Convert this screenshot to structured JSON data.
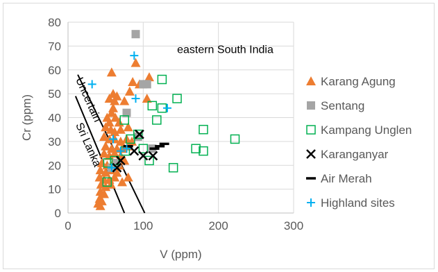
{
  "chart_data": {
    "type": "scatter",
    "xlabel": "V (ppm)",
    "ylabel": "Cr (ppm)",
    "xlim": [
      0,
      300
    ],
    "ylim": [
      0,
      80
    ],
    "x_ticks": [
      "0",
      "100",
      "200",
      "300"
    ],
    "y_ticks": [
      "0",
      "10",
      "20",
      "30",
      "40",
      "50",
      "60",
      "70",
      "80"
    ],
    "grid": true,
    "legend_position": "right",
    "annotations": [
      {
        "text": "eastern South India",
        "x": 145,
        "y": 67
      },
      {
        "text": "Uncertain",
        "x": 10,
        "y": 56,
        "rotation_deg": 66
      },
      {
        "text": "Sri Lanka",
        "x": 10,
        "y": 37,
        "rotation_deg": 66
      }
    ],
    "boundary_lines": [
      {
        "x": [
          13,
          102
        ],
        "y": [
          58,
          0
        ]
      },
      {
        "x": [
          10,
          75
        ],
        "y": [
          49,
          0
        ]
      }
    ],
    "series": [
      {
        "name": "Karang Agung",
        "marker": "triangle",
        "color": "#ED7D31",
        "points": [
          [
            58,
            59
          ],
          [
            90,
            63
          ],
          [
            108,
            57
          ],
          [
            86,
            55
          ],
          [
            95,
            54
          ],
          [
            82,
            51
          ],
          [
            60,
            50
          ],
          [
            65,
            49
          ],
          [
            55,
            48
          ],
          [
            62,
            47
          ],
          [
            75,
            47
          ],
          [
            105,
            48
          ],
          [
            60,
            44
          ],
          [
            58,
            42
          ],
          [
            52,
            40
          ],
          [
            63,
            40
          ],
          [
            55,
            38
          ],
          [
            68,
            38
          ],
          [
            50,
            36
          ],
          [
            57,
            35
          ],
          [
            62,
            34
          ],
          [
            70,
            35
          ],
          [
            80,
            36
          ],
          [
            48,
            32
          ],
          [
            55,
            31
          ],
          [
            62,
            31
          ],
          [
            70,
            30
          ],
          [
            78,
            31
          ],
          [
            85,
            30
          ],
          [
            50,
            28
          ],
          [
            58,
            27
          ],
          [
            65,
            27
          ],
          [
            72,
            27
          ],
          [
            80,
            28
          ],
          [
            48,
            25
          ],
          [
            55,
            24
          ],
          [
            62,
            25
          ],
          [
            70,
            24
          ],
          [
            75,
            22
          ],
          [
            45,
            21
          ],
          [
            52,
            20
          ],
          [
            60,
            21
          ],
          [
            68,
            20
          ],
          [
            43,
            18
          ],
          [
            50,
            17
          ],
          [
            58,
            18
          ],
          [
            65,
            17
          ],
          [
            42,
            15
          ],
          [
            48,
            14
          ],
          [
            55,
            14
          ],
          [
            62,
            15
          ],
          [
            44,
            12
          ],
          [
            50,
            11
          ],
          [
            57,
            12
          ],
          [
            43,
            9
          ],
          [
            48,
            8
          ],
          [
            42,
            6
          ],
          [
            45,
            5
          ],
          [
            40,
            4
          ],
          [
            43,
            3
          ],
          [
            80,
            15
          ],
          [
            72,
            13
          ]
        ]
      },
      {
        "name": "Sentang",
        "marker": "square-filled",
        "color": "#A5A5A5",
        "points": [
          [
            90,
            75
          ],
          [
            100,
            54
          ],
          [
            105,
            54
          ],
          [
            78,
            42
          ],
          [
            93,
            32
          ],
          [
            112,
            27
          ],
          [
            58,
            19
          ],
          [
            65,
            21
          ]
        ]
      },
      {
        "name": "Kampang Unglen",
        "marker": "square-open",
        "color": "#00B050",
        "points": [
          [
            125,
            56
          ],
          [
            145,
            48
          ],
          [
            112,
            45
          ],
          [
            125,
            44
          ],
          [
            118,
            39
          ],
          [
            75,
            39
          ],
          [
            180,
            35
          ],
          [
            222,
            31
          ],
          [
            93,
            33
          ],
          [
            83,
            31
          ],
          [
            170,
            27
          ],
          [
            180,
            26
          ],
          [
            100,
            27
          ],
          [
            76,
            26
          ],
          [
            62,
            22
          ],
          [
            108,
            22
          ],
          [
            140,
            19
          ],
          [
            53,
            21
          ],
          [
            52,
            13
          ]
        ]
      },
      {
        "name": "Karanganyar",
        "marker": "x",
        "color": "#000000",
        "points": [
          [
            95,
            33
          ],
          [
            88,
            26
          ],
          [
            100,
            24
          ],
          [
            113,
            24
          ],
          [
            70,
            22
          ],
          [
            65,
            19
          ]
        ]
      },
      {
        "name": "Air Merah",
        "marker": "dash",
        "color": "#000000",
        "points": [
          [
            80,
            28
          ],
          [
            122,
            28
          ],
          [
            128,
            29
          ],
          [
            115,
            27
          ]
        ]
      },
      {
        "name": "Highland sites",
        "marker": "plus",
        "color": "#00B0F0",
        "points": [
          [
            32,
            54
          ],
          [
            88,
            66
          ],
          [
            90,
            48
          ],
          [
            132,
            44
          ],
          [
            60,
            31
          ],
          [
            70,
            26
          ],
          [
            78,
            27
          ],
          [
            58,
            19
          ]
        ]
      }
    ]
  }
}
